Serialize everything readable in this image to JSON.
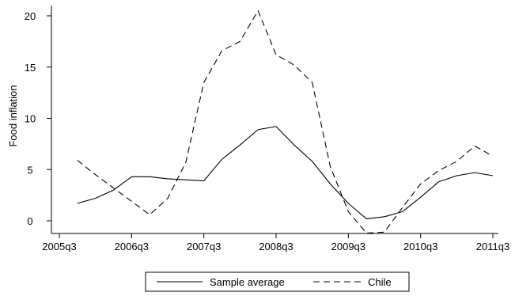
{
  "chart_data": {
    "type": "line",
    "ylabel": "Food inflation",
    "xlabel": "",
    "title": "",
    "x_tick_labels": [
      "2005q3",
      "2006q3",
      "2007q3",
      "2008q3",
      "2009q3",
      "2010q3",
      "2011q3"
    ],
    "y_ticks": [
      0,
      5,
      10,
      15,
      20
    ],
    "ylim": [
      -1.3,
      21
    ],
    "grid": false,
    "legend_position": "bottom",
    "x_start": "2005q3",
    "x_end": "2011q3",
    "x": [
      "2005q4",
      "2006q1",
      "2006q2",
      "2006q3",
      "2006q4",
      "2007q1",
      "2007q2",
      "2007q3",
      "2007q4",
      "2008q1",
      "2008q2",
      "2008q3",
      "2008q4",
      "2009q1",
      "2009q2",
      "2009q3",
      "2009q4",
      "2010q1",
      "2010q2",
      "2010q3",
      "2010q4",
      "2011q1",
      "2011q2",
      "2011q3"
    ],
    "series": [
      {
        "name": "Sample average",
        "dash": "solid",
        "values": [
          1.7,
          2.2,
          3.0,
          4.3,
          4.3,
          4.1,
          4.0,
          3.9,
          6.0,
          7.4,
          8.9,
          9.2,
          7.4,
          5.8,
          3.6,
          1.7,
          0.2,
          0.4,
          0.9,
          2.3,
          3.8,
          4.4,
          4.7,
          4.4
        ]
      },
      {
        "name": "Chile",
        "dash": "dashed",
        "values": [
          5.9,
          4.5,
          3.2,
          1.9,
          0.6,
          2.2,
          5.7,
          13.5,
          16.6,
          17.5,
          20.5,
          16.2,
          15.2,
          13.5,
          5.3,
          0.9,
          -1.2,
          -1.1,
          1.3,
          3.6,
          4.9,
          5.8,
          7.3,
          6.3
        ]
      }
    ]
  }
}
